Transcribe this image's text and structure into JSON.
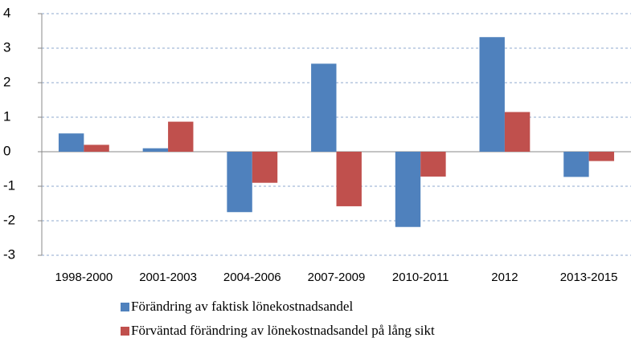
{
  "chart_data": {
    "type": "bar",
    "categories": [
      "1998-2000",
      "2001-2003",
      "2004-2006",
      "2007-2009",
      "2010-2011",
      "2012",
      "2013-2015"
    ],
    "series": [
      {
        "name": "Förändring av faktisk lönekostnadsandel",
        "color": "#4f81bd",
        "values": [
          0.53,
          0.1,
          -1.75,
          2.55,
          -2.18,
          3.32,
          -0.73
        ]
      },
      {
        "name": "Förväntad förändring av lönekostnadsandel på lång sikt",
        "color": "#c0504d",
        "values": [
          0.2,
          0.87,
          -0.9,
          -1.58,
          -0.72,
          1.15,
          -0.27
        ]
      }
    ],
    "ylim": [
      -3,
      4
    ],
    "yticks": [
      -3,
      -2,
      -1,
      0,
      1,
      2,
      3,
      4
    ],
    "grid": true,
    "legend": "bottom"
  }
}
